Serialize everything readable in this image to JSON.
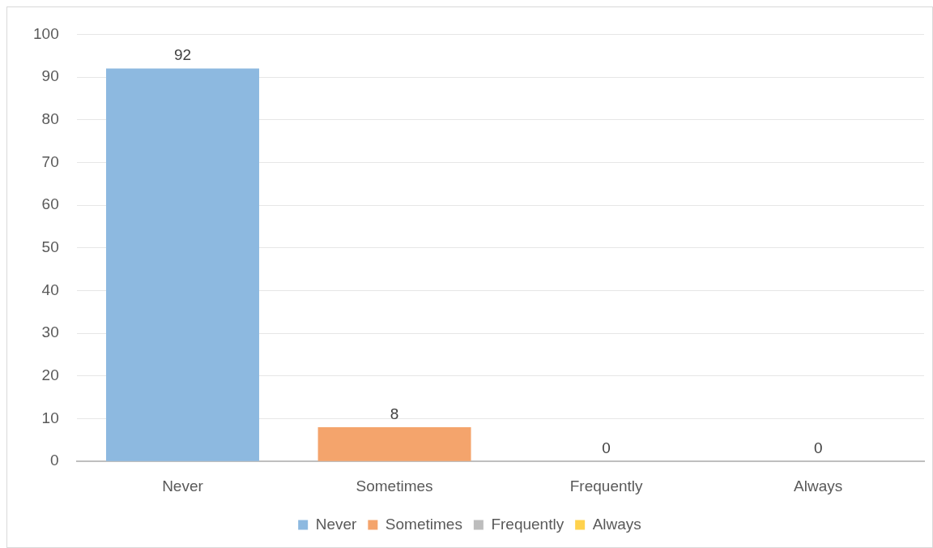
{
  "chart_data": {
    "type": "bar",
    "categories": [
      "Never",
      "Sometimes",
      "Frequently",
      "Always"
    ],
    "series": [
      {
        "name": "Never",
        "color": "#8db9e0",
        "values": [
          92,
          null,
          null,
          null
        ]
      },
      {
        "name": "Sometimes",
        "color": "#f4a46c",
        "values": [
          null,
          8,
          null,
          null
        ]
      },
      {
        "name": "Frequently",
        "color": "#bdbdbd",
        "values": [
          null,
          null,
          0,
          null
        ]
      },
      {
        "name": "Always",
        "color": "#ffd24d",
        "values": [
          null,
          null,
          null,
          0
        ]
      }
    ],
    "ylim": [
      0,
      100
    ],
    "yticks": [
      0,
      10,
      20,
      30,
      40,
      50,
      60,
      70,
      80,
      90,
      100
    ],
    "grid": "y",
    "legend": "bottom",
    "data_labels": true
  }
}
